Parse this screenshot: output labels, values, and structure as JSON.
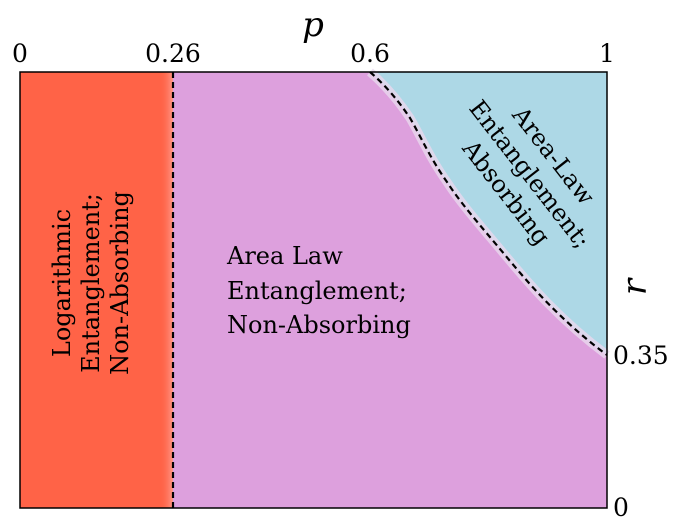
{
  "axes": {
    "x_label": "p",
    "y_label": "r",
    "x_ticks": [
      "0",
      "0.26",
      "0.6",
      "1"
    ],
    "y_ticks": [
      "0.35",
      "0"
    ]
  },
  "regions": {
    "logarithmic": {
      "lines": [
        "Logarithmic",
        "Entanglement;",
        "Non-Absorbing"
      ],
      "color": "#ff6347"
    },
    "area_law_non_absorbing": {
      "lines": [
        "Area Law",
        "Entanglement;",
        "Non-Absorbing"
      ],
      "color": "#dda0dd"
    },
    "area_law_absorbing": {
      "lines": [
        "Area-Law",
        "Entanglement;",
        "Absorbing"
      ],
      "color": "#add8e6"
    }
  },
  "boundaries": {
    "vertical_p": 0.26,
    "curve_start_p": 0.6,
    "curve_end_r": 0.35,
    "style": "dashed"
  }
}
